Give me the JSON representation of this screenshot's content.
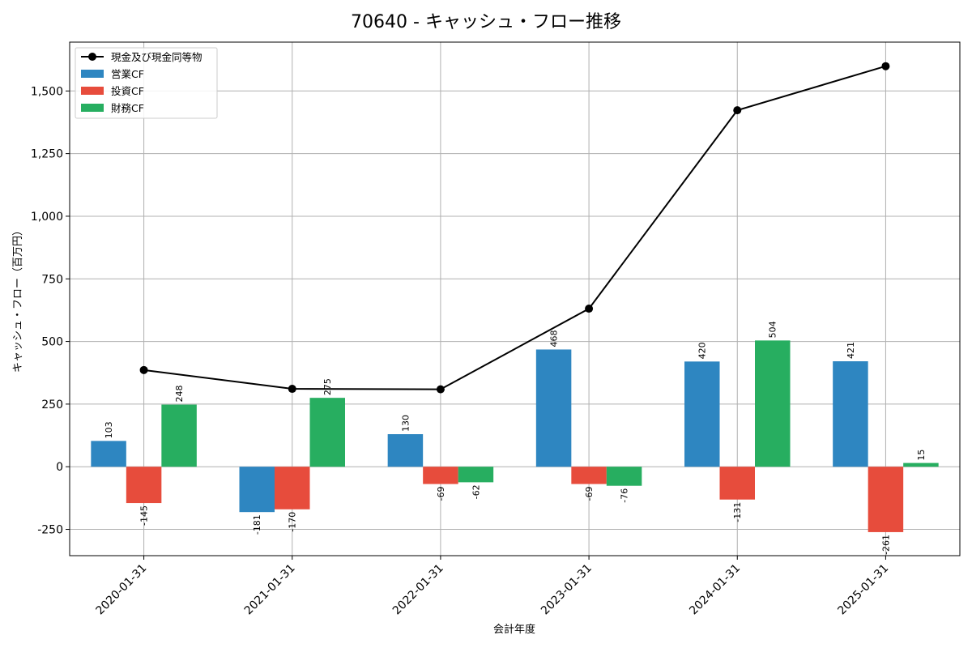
{
  "chart_data": {
    "type": "bar",
    "title": "70640 - キャッシュ・フロー推移",
    "xlabel": "会計年度",
    "ylabel": "キャッシュ・フロー（百万円）",
    "ylim": [
      -355,
      1695
    ],
    "yticks": [
      -250,
      0,
      250,
      500,
      750,
      1000,
      1250,
      1500
    ],
    "ytick_labels": [
      "-250",
      "0",
      "250",
      "500",
      "750",
      "1,000",
      "1,250",
      "1,500"
    ],
    "grid": true,
    "legend_position": "top-left",
    "categories": [
      "2020-01-31",
      "2021-01-31",
      "2022-01-31",
      "2023-01-31",
      "2024-01-31",
      "2025-01-31"
    ],
    "series": [
      {
        "name": "営業CF",
        "kind": "bar",
        "color": "#2e86c1",
        "values": [
          103,
          -181,
          130,
          468,
          420,
          421
        ]
      },
      {
        "name": "投資CF",
        "kind": "bar",
        "color": "#e74c3c",
        "values": [
          -145,
          -170,
          -69,
          -69,
          -131,
          -261
        ]
      },
      {
        "name": "財務CF",
        "kind": "bar",
        "color": "#27ae60",
        "values": [
          248,
          275,
          -62,
          -76,
          504,
          15
        ]
      },
      {
        "name": "現金及び現金同等物",
        "kind": "line",
        "color": "#000000",
        "values": [
          386,
          311,
          309,
          631,
          1423,
          1599
        ]
      }
    ]
  }
}
